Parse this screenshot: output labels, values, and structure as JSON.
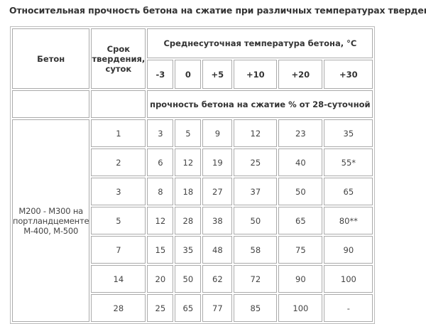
{
  "title": "Относительная прочность бетона на сжатие при различных температурах твердения",
  "headers": {
    "concrete": "Бетон",
    "period_line1": "Срок",
    "period_line2": "твердения,",
    "period_line3": "суток",
    "temperature": "Среднесуточная температура бетона, °C",
    "temps": [
      "-3",
      "0",
      "+5",
      "+10",
      "+20",
      "+30"
    ],
    "strength": "прочность бетона на сжатие % от 28-суточной"
  },
  "concrete_type": {
    "line1": "М200 - М300 на",
    "line2": "портландцементе",
    "line3": "М-400, М-500"
  },
  "rows": [
    {
      "days": "1",
      "values": [
        "3",
        "5",
        "9",
        "12",
        "23",
        "35"
      ]
    },
    {
      "days": "2",
      "values": [
        "6",
        "12",
        "19",
        "25",
        "40",
        "55*"
      ]
    },
    {
      "days": "3",
      "values": [
        "8",
        "18",
        "27",
        "37",
        "50",
        "65"
      ]
    },
    {
      "days": "5",
      "values": [
        "12",
        "28",
        "38",
        "50",
        "65",
        "80**"
      ]
    },
    {
      "days": "7",
      "values": [
        "15",
        "35",
        "48",
        "58",
        "75",
        "90"
      ]
    },
    {
      "days": "14",
      "values": [
        "20",
        "50",
        "62",
        "72",
        "90",
        "100"
      ]
    },
    {
      "days": "28",
      "values": [
        "25",
        "65",
        "77",
        "85",
        "100",
        "-"
      ]
    }
  ]
}
